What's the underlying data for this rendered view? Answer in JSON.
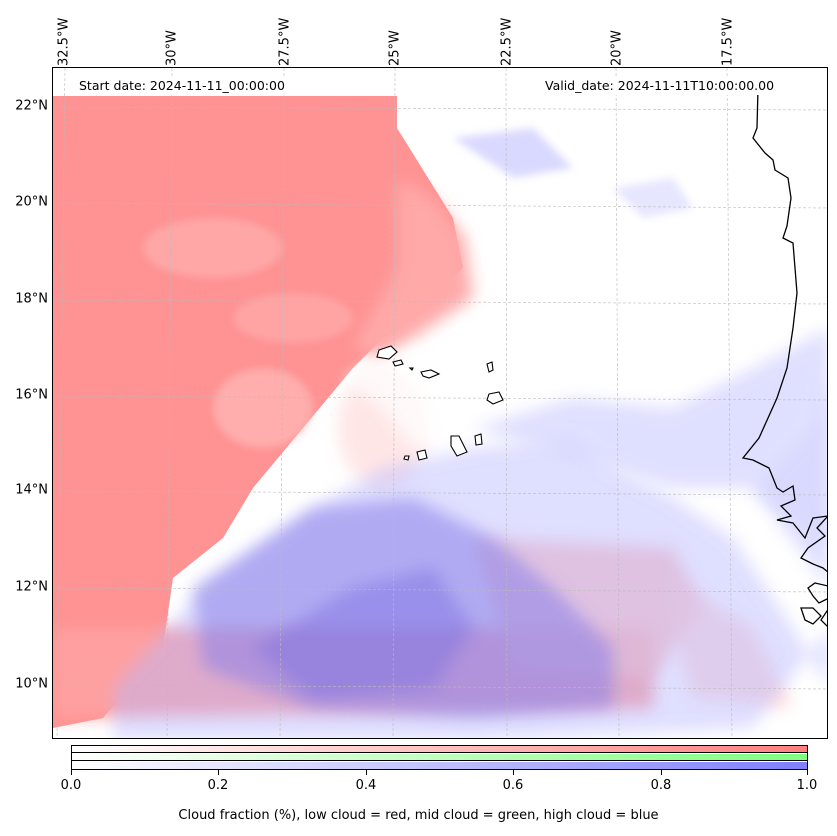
{
  "map": {
    "start_label": "Start date: 2024-11-11_00:00:00",
    "valid_label": "Valid_date: 2024-11-11T10:00:00.00",
    "lon_labels": [
      "32.5°W",
      "30°W",
      "27.5°W",
      "25°W",
      "22.5°W",
      "20°W",
      "17.5°W"
    ],
    "lat_labels": [
      "22°N",
      "20°N",
      "18°N",
      "16°N",
      "14°N",
      "12°N",
      "10°N"
    ],
    "layers": [
      "low cloud",
      "mid cloud",
      "high cloud"
    ],
    "colors": {
      "low": "#ff7f7f",
      "mid": "#7fff7f",
      "high": "#7f7fff",
      "coast": "#000000",
      "grid": "#bbbbbb"
    }
  },
  "colorbar": {
    "ticks": [
      "0.0",
      "0.2",
      "0.4",
      "0.6",
      "0.8",
      "1.0"
    ],
    "caption": "Cloud fraction (%), low cloud = red, mid cloud = green, high cloud = blue"
  }
}
